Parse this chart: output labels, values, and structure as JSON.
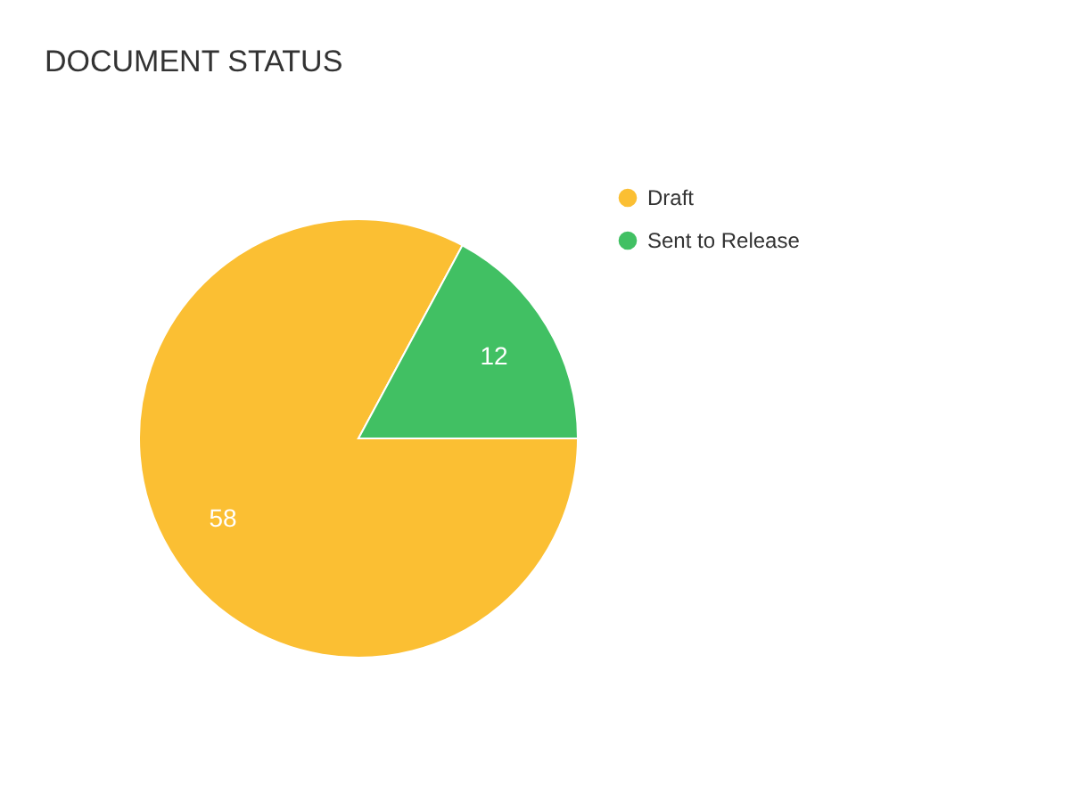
{
  "chart_data": {
    "type": "pie",
    "title": "DOCUMENT STATUS",
    "categories": [
      "Draft",
      "Sent to Release"
    ],
    "values": [
      58,
      12
    ],
    "colors": [
      "#fbbf33",
      "#41c063"
    ],
    "data_labels": true,
    "legend": "top right"
  }
}
